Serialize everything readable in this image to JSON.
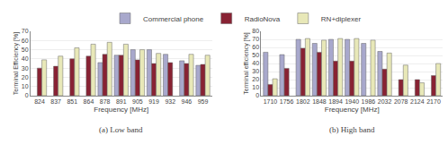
{
  "chart_data": [
    {
      "type": "bar",
      "categories": [
        "824",
        "837",
        "851",
        "864",
        "878",
        "891",
        "905",
        "919",
        "932",
        "946",
        "959"
      ],
      "series": [
        {
          "name": "Commercial phone",
          "color": "#a8a8cc",
          "values": [
            null,
            null,
            null,
            null,
            36,
            44,
            50,
            50,
            45,
            38,
            33
          ]
        },
        {
          "name": "RadioNova",
          "color": "#882233",
          "values": [
            30,
            32,
            40,
            43,
            45,
            44,
            39,
            35,
            36,
            35,
            34
          ]
        },
        {
          "name": "RN+diplexer",
          "color": "#e8e8b8",
          "values": [
            39,
            43,
            52,
            56,
            58,
            56,
            50,
            46,
            null,
            45,
            44
          ]
        }
      ],
      "ylim": [
        0,
        70
      ],
      "yticks": [
        0,
        10,
        20,
        30,
        40,
        50,
        60,
        70
      ],
      "xlabel": "Frequency [MHz]",
      "ylabel": "Terminal Efficiency [%]",
      "subtitle": "(a) Low band",
      "grid": true,
      "legend": "top"
    },
    {
      "type": "bar",
      "categories": [
        "1710",
        "1756",
        "1802",
        "1848",
        "1894",
        "1940",
        "1986",
        "2032",
        "2078",
        "2124",
        "2170"
      ],
      "series": [
        {
          "name": "Commercial phone",
          "color": "#a8a8cc",
          "values": [
            54,
            51,
            70,
            65,
            70,
            70,
            65,
            55,
            null,
            null,
            null
          ]
        },
        {
          "name": "RadioNova",
          "color": "#882233",
          "values": [
            14,
            34,
            59,
            54,
            43,
            43,
            null,
            33,
            20,
            20,
            25
          ]
        },
        {
          "name": "RN+diplexer",
          "color": "#e8e8b8",
          "values": [
            21,
            null,
            71,
            69,
            71,
            71,
            69,
            53,
            38,
            16,
            40
          ]
        }
      ],
      "ylim": [
        0,
        80
      ],
      "yticks": [
        0,
        10,
        20,
        30,
        40,
        50,
        60,
        70,
        80
      ],
      "xlabel": "Frequency [MHz]",
      "ylabel": "Terminal efficiency [%]",
      "subtitle": "(b) High band",
      "grid": true,
      "legend": "top"
    }
  ]
}
